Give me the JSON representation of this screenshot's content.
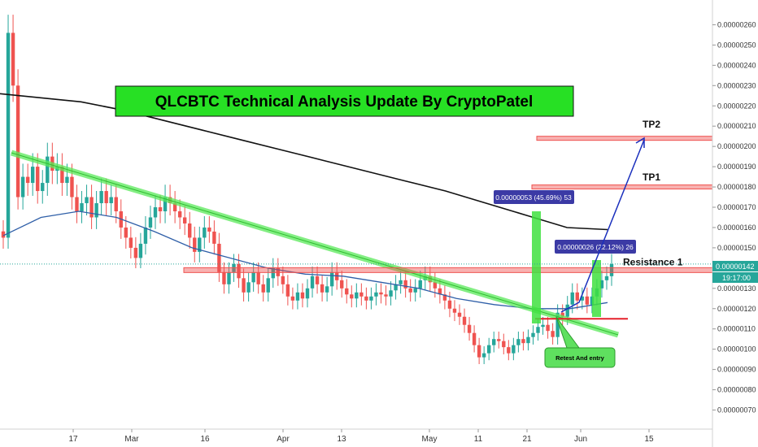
{
  "chart_data": {
    "type": "candlestick",
    "symbol": "QLCBTC",
    "title": "QLCBTC Technical Analysis Update By CryptoPatel",
    "yaxis": {
      "min": 6.7e-07,
      "max": 2.71e-06,
      "ticks": [
        "0.00000070",
        "0.00000080",
        "0.00000090",
        "0.00000100",
        "0.00000110",
        "0.00000120",
        "0.00000130",
        "0.00000140",
        "0.00000150",
        "0.00000160",
        "0.00000170",
        "0.00000180",
        "0.00000190",
        "0.00000200",
        "0.00000210",
        "0.00000220",
        "0.00000230",
        "0.00000240",
        "0.00000250",
        "0.00000260"
      ]
    },
    "xaxis": {
      "labels": [
        {
          "text": "17",
          "day": 4
        },
        {
          "text": "Mar",
          "day": 16
        },
        {
          "text": "16",
          "day": 31
        },
        {
          "text": "Apr",
          "day": 47
        },
        {
          "text": "13",
          "day": 59
        },
        {
          "text": "May",
          "day": 77
        },
        {
          "text": "11",
          "day": 87
        },
        {
          "text": "21",
          "day": 97
        },
        {
          "text": "Jun",
          "day": 108
        },
        {
          "text": "15",
          "day": 122
        }
      ]
    },
    "current_price": "0.00000142",
    "countdown": "19:17:00",
    "annotations": {
      "tp1_label": "TP1",
      "tp2_label": "TP2",
      "resistance_label": "Resistance 1",
      "callout_label": "Retest And entry",
      "measure_big": "0.00000053 (45.69%) 53",
      "measure_small": "0.00000026 (22.12%) 26"
    },
    "levels": {
      "tp1": 1.8e-06,
      "tp2": 2.04e-06,
      "resistance": 1.39e-06,
      "support": 1.15e-06
    },
    "series_close": [
      1.55e-06,
      2.56e-06,
      2.3e-06,
      1.75e-06,
      1.85e-06,
      1.82e-06,
      1.9e-06,
      1.78e-06,
      1.82e-06,
      1.95e-06,
      1.88e-06,
      1.9e-06,
      1.82e-06,
      1.85e-06,
      1.75e-06,
      1.68e-06,
      1.72e-06,
      1.75e-06,
      1.65e-06,
      1.72e-06,
      1.78e-06,
      1.72e-06,
      1.75e-06,
      1.68e-06,
      1.6e-06,
      1.55e-06,
      1.5e-06,
      1.45e-06,
      1.52e-06,
      1.6e-06,
      1.65e-06,
      1.7e-06,
      1.68e-06,
      1.75e-06,
      1.72e-06,
      1.68e-06,
      1.65e-06,
      1.62e-06,
      1.55e-06,
      1.48e-06,
      1.55e-06,
      1.6e-06,
      1.58e-06,
      1.52e-06,
      1.38e-06,
      1.32e-06,
      1.38e-06,
      1.42e-06,
      1.35e-06,
      1.28e-06,
      1.33e-06,
      1.38e-06,
      1.32e-06,
      1.28e-06,
      1.35e-06,
      1.4e-06,
      1.36e-06,
      1.32e-06,
      1.26e-06,
      1.24e-06,
      1.28e-06,
      1.25e-06,
      1.3e-06,
      1.36e-06,
      1.32e-06,
      1.28e-06,
      1.31e-06,
      1.38e-06,
      1.34e-06,
      1.3e-06,
      1.27e-06,
      1.25e-06,
      1.28e-06,
      1.26e-06,
      1.24e-06,
      1.26e-06,
      1.28e-06,
      1.27e-06,
      1.26e-06,
      1.29e-06,
      1.32e-06,
      1.34e-06,
      1.3e-06,
      1.28e-06,
      1.3e-06,
      1.34e-06,
      1.36e-06,
      1.33e-06,
      1.3e-06,
      1.27e-06,
      1.24e-06,
      1.2e-06,
      1.18e-06,
      1.16e-06,
      1.12e-06,
      1.08e-06,
      1.02e-06,
      9.6e-07,
      9.8e-07,
      1.02e-06,
      1.05e-06,
      1.04e-06,
      1.01e-06,
      9.8e-07,
      1.02e-06,
      1.05e-06,
      1.03e-06,
      1.06e-06,
      1.08e-06,
      1.11e-06,
      1.12e-06,
      1.09e-06,
      1.06e-06,
      1.18e-06,
      1.16e-06,
      1.22e-06,
      1.28e-06,
      1.24e-06,
      1.26e-06,
      1.22e-06,
      1.26e-06,
      1.3e-06,
      1.34e-06,
      1.36e-06,
      1.42e-06
    ],
    "ma200": [
      2.26e-06,
      2.24e-06,
      2.22e-06,
      2.18e-06,
      2.13e-06,
      2.08e-06,
      2.03e-06,
      1.98e-06,
      1.93e-06,
      1.88e-06,
      1.83e-06,
      1.78e-06,
      1.72e-06,
      1.66e-06,
      1.6e-06,
      1.59e-06
    ],
    "ma50": [
      1.56e-06,
      1.65e-06,
      1.68e-06,
      1.65e-06,
      1.58e-06,
      1.5e-06,
      1.45e-06,
      1.4e-06,
      1.37e-06,
      1.36e-06,
      1.33e-06,
      1.3e-06,
      1.25e-06,
      1.22e-06,
      1.2e-06,
      1.2e-06,
      1.23e-06
    ]
  },
  "colors": {
    "bull": "#26a69a",
    "bear": "#ef5350",
    "ma200": "#111111",
    "ma50": "#2f5fa8",
    "trendline": "#59e85a",
    "level": "#ef5350",
    "arrow": "#1a2fbd",
    "measure_box": "#3b3aa5",
    "title_bg": "#27e024"
  }
}
